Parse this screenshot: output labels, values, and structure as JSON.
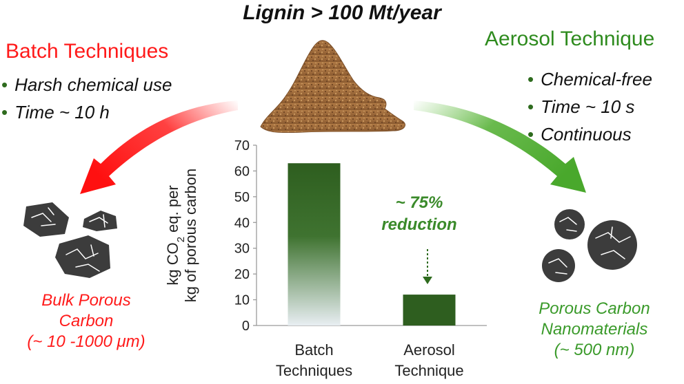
{
  "title": "Lignin > 100 Mt/year",
  "left": {
    "heading": "Batch Techniques",
    "bullets": [
      "Harsh chemical use",
      "Time ~ 10 h"
    ],
    "product": [
      "Bulk Porous",
      "Carbon",
      "(~ 10 -1000 μm)"
    ]
  },
  "right": {
    "heading": "Aerosol Technique",
    "bullets": [
      "Chemical-free",
      "Time ~ 10 s",
      "Continuous"
    ],
    "product": [
      "Porous Carbon",
      "Nanomaterials",
      "(~ 500 nm)"
    ]
  },
  "colors": {
    "batch": "#ff1a1a",
    "aerosol": "#3a9a2a",
    "bar_green": "#2e5e1f",
    "particles": "#3c3c3c",
    "lignin": "#9c6a3c"
  },
  "icons": [
    "lignin-pile",
    "red-curved-arrow",
    "green-curved-arrow",
    "porous-particle"
  ],
  "chart_data": {
    "type": "bar",
    "categories": [
      [
        "Batch",
        "Techniques"
      ],
      [
        "Aerosol",
        "Technique"
      ]
    ],
    "values": [
      63,
      12
    ],
    "ylabel_line1": "kg CO",
    "ylabel_sub": "2",
    "ylabel_line1_end": " eq. per",
    "ylabel_line2": "kg of porous carbon",
    "ylim": [
      0,
      70
    ],
    "yticks": [
      0,
      10,
      20,
      30,
      40,
      50,
      60,
      70
    ],
    "annotation": [
      "~ 75%",
      "reduction"
    ],
    "grid": false,
    "legend": "none"
  }
}
